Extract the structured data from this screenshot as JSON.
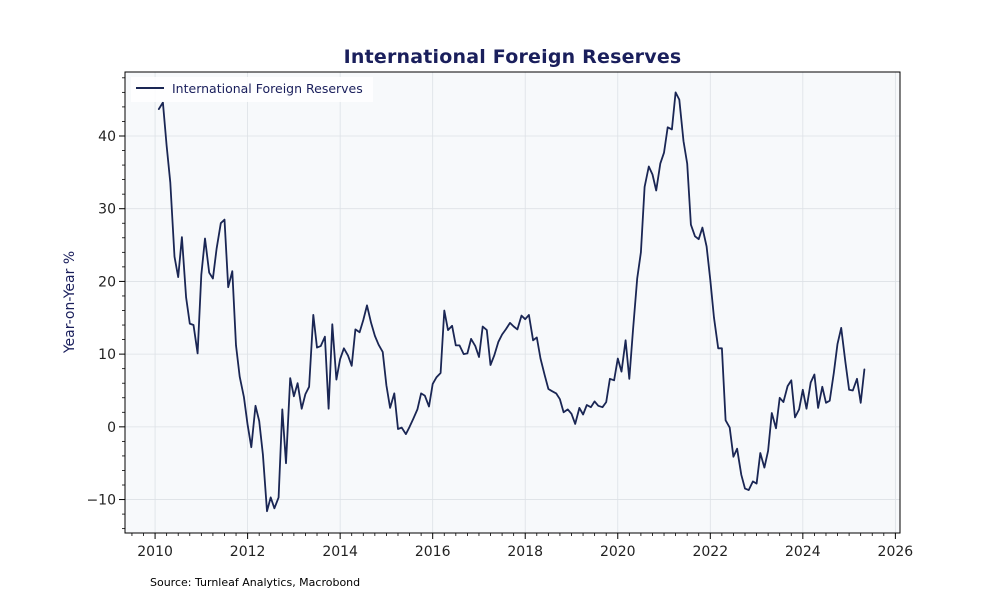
{
  "chart_data": {
    "type": "line",
    "title": "International Foreign Reserves",
    "xlabel": "",
    "ylabel": "Year-on-Year %",
    "xlim": [
      2009.35,
      2026.1
    ],
    "ylim": [
      -14.6,
      48.8
    ],
    "xticks": [
      2010,
      2012,
      2014,
      2016,
      2018,
      2020,
      2022,
      2024,
      2026
    ],
    "yticks": [
      -10,
      0,
      10,
      20,
      30,
      40
    ],
    "grid": true,
    "legend": "top-left",
    "source": "Source: Turnleaf Analytics, Macrobond",
    "colors": {
      "line": "#1a2654",
      "title": "#1a1f5c",
      "plot_bg": "#f7f9fb",
      "grid": "#dde1e6"
    },
    "series": [
      {
        "name": "International Foreign Reserves",
        "x": [
          2010.08,
          2010.17,
          2010.25,
          2010.33,
          2010.42,
          2010.5,
          2010.58,
          2010.67,
          2010.75,
          2010.83,
          2010.92,
          2011.0,
          2011.08,
          2011.17,
          2011.25,
          2011.33,
          2011.42,
          2011.5,
          2011.58,
          2011.67,
          2011.75,
          2011.83,
          2011.92,
          2012.0,
          2012.08,
          2012.17,
          2012.25,
          2012.33,
          2012.42,
          2012.5,
          2012.58,
          2012.67,
          2012.75,
          2012.83,
          2012.92,
          2013.0,
          2013.08,
          2013.17,
          2013.25,
          2013.33,
          2013.42,
          2013.5,
          2013.58,
          2013.67,
          2013.75,
          2013.83,
          2013.92,
          2014.0,
          2014.08,
          2014.17,
          2014.25,
          2014.33,
          2014.42,
          2014.5,
          2014.58,
          2014.67,
          2014.75,
          2014.83,
          2014.92,
          2015.0,
          2015.08,
          2015.17,
          2015.25,
          2015.33,
          2015.42,
          2015.5,
          2015.58,
          2015.67,
          2015.75,
          2015.83,
          2015.92,
          2016.0,
          2016.08,
          2016.17,
          2016.25,
          2016.33,
          2016.42,
          2016.5,
          2016.58,
          2016.67,
          2016.75,
          2016.83,
          2016.92,
          2017.0,
          2017.08,
          2017.17,
          2017.25,
          2017.33,
          2017.42,
          2017.5,
          2017.58,
          2017.67,
          2017.75,
          2017.83,
          2017.92,
          2018.0,
          2018.08,
          2018.17,
          2018.25,
          2018.33,
          2018.42,
          2018.5,
          2018.58,
          2018.67,
          2018.75,
          2018.83,
          2018.92,
          2019.0,
          2019.08,
          2019.17,
          2019.25,
          2019.33,
          2019.42,
          2019.5,
          2019.58,
          2019.67,
          2019.75,
          2019.83,
          2019.92,
          2020.0,
          2020.08,
          2020.17,
          2020.25,
          2020.33,
          2020.42,
          2020.5,
          2020.58,
          2020.67,
          2020.75,
          2020.83,
          2020.92,
          2021.0,
          2021.08,
          2021.17,
          2021.25,
          2021.33,
          2021.42,
          2021.5,
          2021.58,
          2021.67,
          2021.75,
          2021.83,
          2021.92,
          2022.0,
          2022.08,
          2022.17,
          2022.25,
          2022.33,
          2022.42,
          2022.5,
          2022.58,
          2022.67,
          2022.75,
          2022.83,
          2022.92,
          2023.0,
          2023.08,
          2023.17,
          2023.25,
          2023.33,
          2023.42,
          2023.5,
          2023.58,
          2023.67,
          2023.75,
          2023.83,
          2023.92,
          2024.0,
          2024.08,
          2024.17,
          2024.25,
          2024.33,
          2024.42,
          2024.5,
          2024.58,
          2024.67,
          2024.75,
          2024.83,
          2024.92,
          2025.0,
          2025.08,
          2025.17,
          2025.25,
          2025.33
        ],
        "y": [
          43.7,
          44.6,
          38.7,
          33.6,
          23.4,
          20.6,
          26.1,
          17.8,
          14.2,
          14.0,
          10.1,
          20.9,
          25.9,
          21.2,
          20.4,
          24.5,
          28.0,
          28.5,
          19.2,
          21.4,
          11.2,
          6.9,
          4.1,
          0.3,
          -2.8,
          2.9,
          0.8,
          -3.8,
          -11.6,
          -9.7,
          -11.2,
          -9.7,
          2.4,
          -5.0,
          6.7,
          4.2,
          6.0,
          2.5,
          4.5,
          5.5,
          15.4,
          10.9,
          11.1,
          12.4,
          2.5,
          14.1,
          6.5,
          9.3,
          10.8,
          9.8,
          8.4,
          13.4,
          13.0,
          14.7,
          16.7,
          14.3,
          12.5,
          11.3,
          10.3,
          5.7,
          2.6,
          4.6,
          -0.3,
          -0.1,
          -1.0,
          0.0,
          1.1,
          2.4,
          4.6,
          4.3,
          2.8,
          5.9,
          6.8,
          7.4,
          16.0,
          13.3,
          13.9,
          11.2,
          11.2,
          10.0,
          10.1,
          12.1,
          11.1,
          9.6,
          13.8,
          13.3,
          8.5,
          9.8,
          11.7,
          12.7,
          13.4,
          14.3,
          13.8,
          13.4,
          15.3,
          14.8,
          15.4,
          11.9,
          12.3,
          9.4,
          7.1,
          5.2,
          4.9,
          4.6,
          3.8,
          2.0,
          2.4,
          1.8,
          0.4,
          2.6,
          1.7,
          3.0,
          2.7,
          3.5,
          2.9,
          2.7,
          3.4,
          6.6,
          6.4,
          9.4,
          7.6,
          11.9,
          6.6,
          13.3,
          20.4,
          24.0,
          33.0,
          35.8,
          34.7,
          32.5,
          36.2,
          37.7,
          41.2,
          40.9,
          46.0,
          45.0,
          39.3,
          36.2,
          27.8,
          26.2,
          25.8,
          27.4,
          24.8,
          20.2,
          15.0,
          10.8,
          10.8,
          0.9,
          -0.1,
          -4.1,
          -3.0,
          -6.6,
          -8.5,
          -8.7,
          -7.5,
          -7.8,
          -3.6,
          -5.6,
          -3.3,
          1.9,
          -0.2,
          4.0,
          3.4,
          5.6,
          6.4,
          1.3,
          2.4,
          5.1,
          2.5,
          6.1,
          7.2,
          2.6,
          5.5,
          3.3,
          3.6,
          7.4,
          11.4,
          13.6,
          8.9,
          5.1,
          5.0,
          6.6,
          3.3,
          7.9
        ]
      }
    ]
  }
}
